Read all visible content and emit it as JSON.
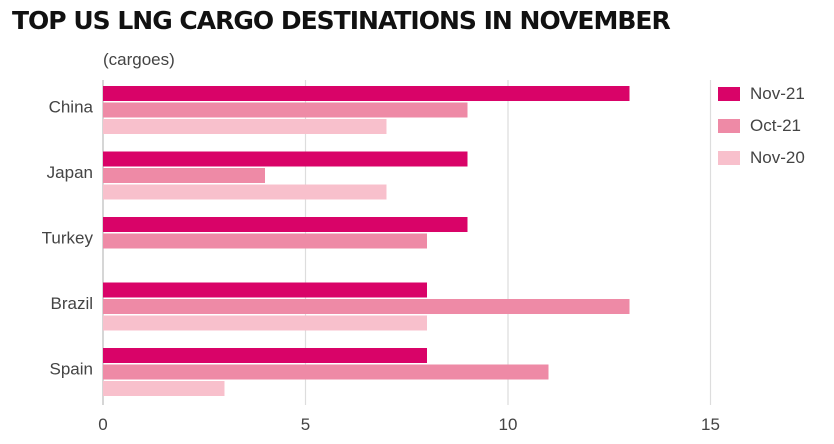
{
  "chart_data": {
    "type": "bar",
    "orientation": "horizontal",
    "title": "TOP US LNG CARGO DESTINATIONS IN NOVEMBER",
    "unit_label": "(cargoes)",
    "categories": [
      "China",
      "Japan",
      "Turkey",
      "Brazil",
      "Spain"
    ],
    "series": [
      {
        "name": "Nov-21",
        "color": "#d90368",
        "values": [
          13,
          9,
          9,
          8,
          8
        ]
      },
      {
        "name": "Oct-21",
        "color": "#ee8aa6",
        "values": [
          9,
          4,
          8,
          13,
          11
        ]
      },
      {
        "name": "Nov-20",
        "color": "#f8c0cc",
        "values": [
          7,
          7,
          null,
          8,
          3
        ]
      }
    ],
    "xlim": [
      0,
      17.5
    ],
    "xticks": [
      0,
      5,
      10,
      15
    ],
    "grid": true,
    "legend": "top-right"
  }
}
